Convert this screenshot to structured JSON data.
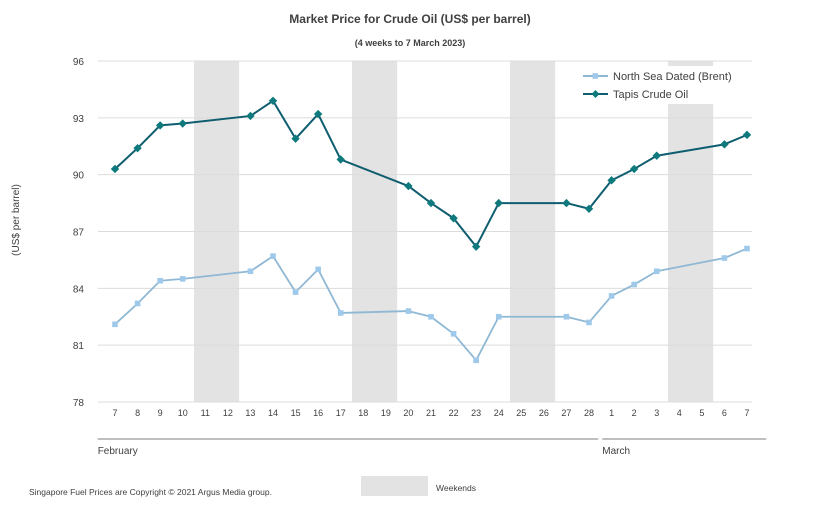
{
  "chart_data": {
    "type": "line",
    "title": "Market Price for Crude  Oil (US$ per barrel)",
    "subtitle": "(4 weeks to 7 March 2023)",
    "ylabel": "(US$ per barrel)",
    "ylim": [
      78,
      96
    ],
    "yticks": [
      "78",
      "81",
      "84",
      "87",
      "90",
      "93",
      "96"
    ],
    "categories": [
      "7",
      "8",
      "9",
      "10",
      "11",
      "12",
      "13",
      "14",
      "15",
      "16",
      "17",
      "18",
      "19",
      "20",
      "21",
      "22",
      "23",
      "24",
      "25",
      "26",
      "27",
      "28",
      "1",
      "2",
      "3",
      "4",
      "5",
      "6",
      "7"
    ],
    "months": [
      {
        "label": "February",
        "from": 0,
        "to": 21
      },
      {
        "label": "March",
        "from": 22,
        "to": 28
      }
    ],
    "weekend_ranges": [
      [
        4,
        5
      ],
      [
        11,
        12
      ],
      [
        18,
        19
      ],
      [
        25,
        26
      ]
    ],
    "weekend_label": "Weekends",
    "grid": true,
    "legend": "top-right",
    "series": [
      {
        "name": "North Sea Dated (Brent)",
        "color": "#8fb8d4",
        "marker_color": "#9fc9ea",
        "marker": "square",
        "values": [
          82.1,
          83.2,
          84.4,
          84.5,
          null,
          null,
          84.9,
          85.7,
          83.8,
          85.0,
          82.7,
          null,
          null,
          82.8,
          82.5,
          81.6,
          80.2,
          82.5,
          null,
          null,
          82.5,
          82.2,
          83.6,
          84.2,
          84.9,
          null,
          null,
          85.6,
          86.1
        ]
      },
      {
        "name": "Tapis Crude Oil",
        "color": "#0e5e6f",
        "marker_color": "#0e7a7d",
        "marker": "diamond",
        "values": [
          90.3,
          91.4,
          92.6,
          92.7,
          null,
          null,
          93.1,
          93.9,
          91.9,
          93.2,
          90.8,
          null,
          null,
          89.4,
          88.5,
          87.7,
          86.2,
          88.5,
          null,
          null,
          88.5,
          88.2,
          89.7,
          90.3,
          91.0,
          null,
          null,
          91.6,
          92.1
        ]
      }
    ]
  },
  "footnote": "Singapore Fuel Prices are Copyright © 2021 Argus Media group."
}
